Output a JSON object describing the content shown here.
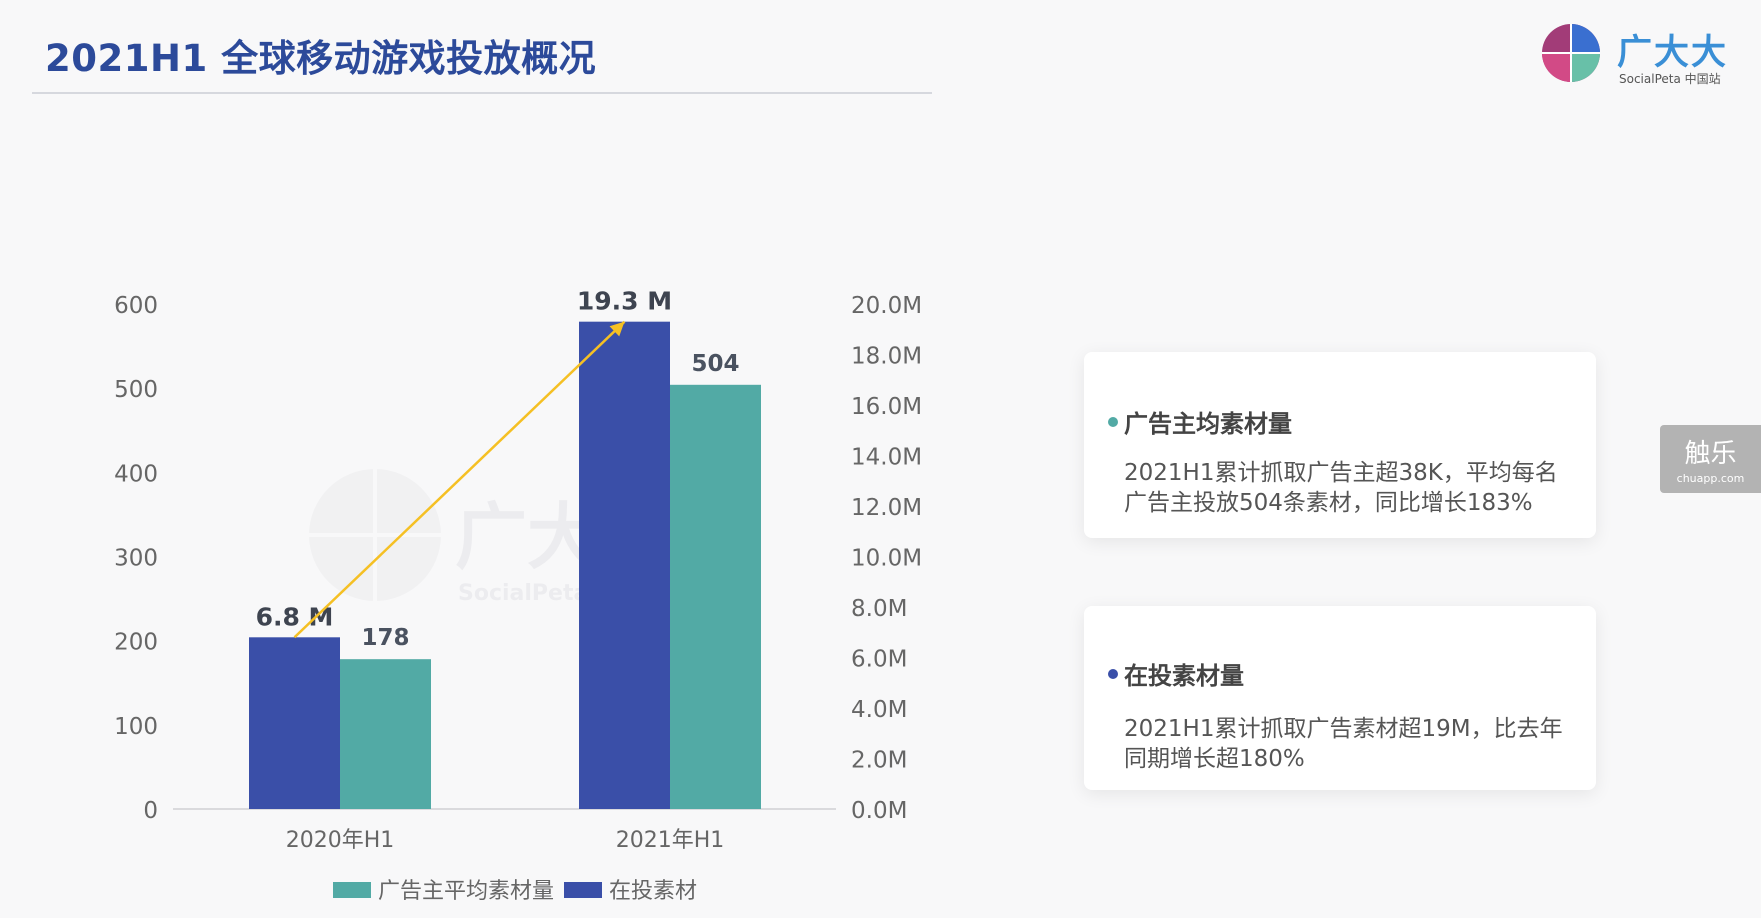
{
  "header": {
    "title": "2021H1 全球移动游戏投放概况",
    "logo_text": "广大大",
    "logo_sub": "SocialPeta 中国站"
  },
  "watermark": {
    "text": "广大大",
    "sub": "SocialPeta 中国站"
  },
  "chart_data": {
    "type": "bar",
    "categories": [
      "2020年H1",
      "2021年H1"
    ],
    "series": [
      {
        "name": "在投素材",
        "axis": "right",
        "unit": "M",
        "values": [
          6.8,
          19.3
        ],
        "labels": [
          "6.8 M",
          "19.3 M"
        ],
        "color": "#3a4fa8"
      },
      {
        "name": "广告主平均素材量",
        "axis": "left",
        "values": [
          178,
          504
        ],
        "labels": [
          "178",
          "504"
        ],
        "color": "#52aaa5"
      }
    ],
    "left_axis": {
      "ylim": [
        0,
        600
      ],
      "ticks": [
        "0",
        "100",
        "200",
        "300",
        "400",
        "500",
        "600"
      ]
    },
    "right_axis": {
      "ylim": [
        0,
        20
      ],
      "ticks": [
        "0.0M",
        "2.0M",
        "4.0M",
        "6.0M",
        "8.0M",
        "10.0M",
        "12.0M",
        "14.0M",
        "16.0M",
        "18.0M",
        "20.0M"
      ]
    },
    "arrow": {
      "from_category": "2020年H1",
      "to_category": "2021年H1",
      "series": "在投素材",
      "color": "#f5c024"
    },
    "legend": {
      "placement": "bottom-center",
      "order": [
        "广告主平均素材量",
        "在投素材"
      ]
    },
    "grid": false
  },
  "cards": [
    {
      "title": "广告主均素材量",
      "dot_color": "#52aaa5",
      "lines": [
        "2021H1累计抓取广告主超38K，平均每名",
        "广告主投放504条素材，同比增长183%"
      ]
    },
    {
      "title": "在投素材量",
      "dot_color": "#3a4fa8",
      "lines": [
        "2021H1累计抓取广告素材超19M，比去年",
        "同期增长超180%"
      ]
    }
  ],
  "side_badge": {
    "big": "触乐",
    "small": "chuapp.com"
  }
}
